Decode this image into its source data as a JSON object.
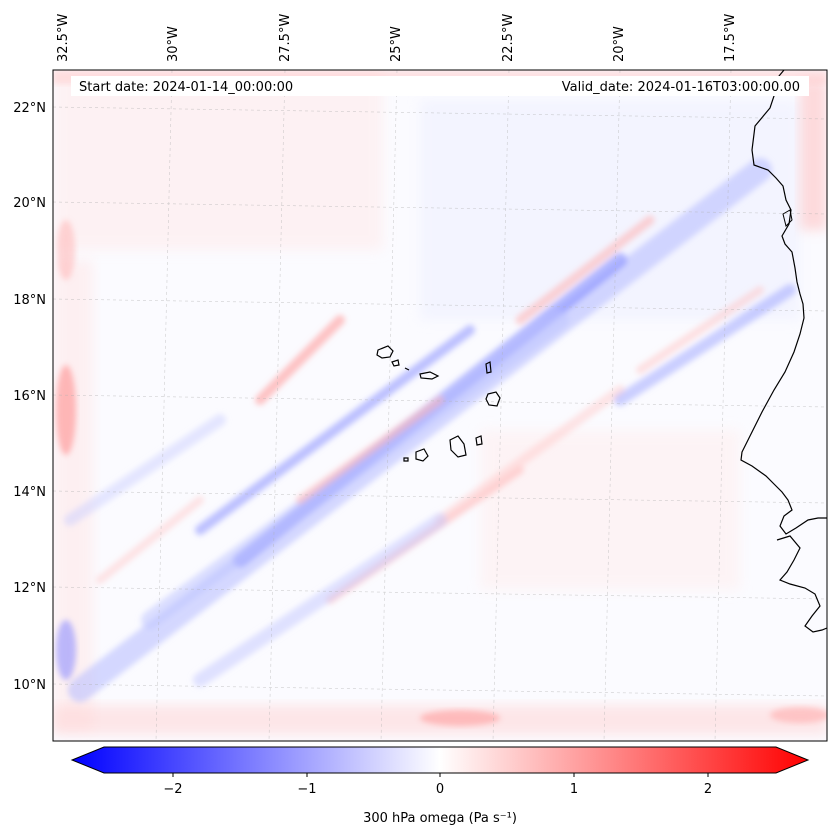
{
  "header": {
    "start_date": "Start date: 2024-01-14_00:00:00",
    "valid_date": "Valid_date: 2024-01-16T03:00:00.00"
  },
  "map": {
    "lon_labels": [
      "32.5°W",
      "30°W",
      "27.5°W",
      "25°W",
      "22.5°W",
      "20°W",
      "17.5°W"
    ],
    "lat_labels": [
      "22°N",
      "20°N",
      "18°N",
      "16°N",
      "14°N",
      "12°N",
      "10°N"
    ],
    "field": "300 hPa omega",
    "colormap": "bwr"
  },
  "colorbar": {
    "label": "300 hPa omega (Pa s⁻¹)",
    "ticks": [
      "−2",
      "−1",
      "0",
      "1",
      "2"
    ],
    "range": [
      -2.6,
      2.6
    ],
    "min_color": "#0000ff",
    "mid_color": "#ffffff",
    "max_color": "#ff0000"
  }
}
